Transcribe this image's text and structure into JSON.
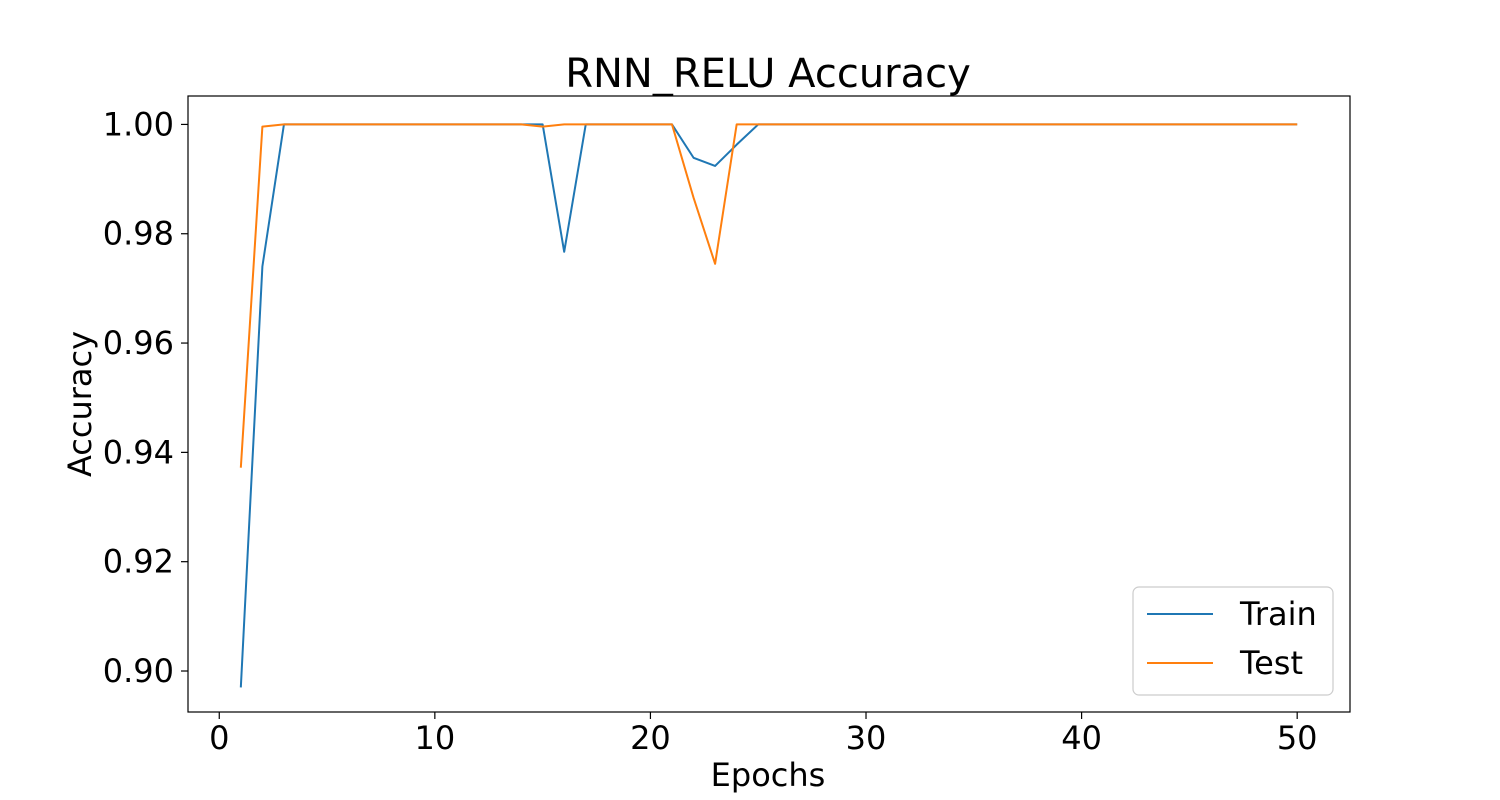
{
  "chart_data": {
    "type": "line",
    "title": "RNN_RELU Accuracy",
    "xlabel": "Epochs",
    "ylabel": "Accuracy",
    "xlim": [
      -1.45,
      52.45
    ],
    "ylim": [
      0.8925,
      1.0052
    ],
    "xticks": [
      0,
      10,
      20,
      30,
      40,
      50
    ],
    "xtick_labels": [
      "0",
      "10",
      "20",
      "30",
      "40",
      "50"
    ],
    "yticks": [
      0.9,
      0.92,
      0.94,
      0.96,
      0.98,
      1.0
    ],
    "ytick_labels": [
      "0.90",
      "0.92",
      "0.94",
      "0.96",
      "0.98",
      "1.00"
    ],
    "grid": false,
    "legend_position": "lower-right",
    "x": [
      1,
      2,
      3,
      4,
      5,
      6,
      7,
      8,
      9,
      10,
      11,
      12,
      13,
      14,
      15,
      16,
      17,
      18,
      19,
      20,
      21,
      22,
      23,
      24,
      25,
      26,
      27,
      28,
      29,
      30,
      31,
      32,
      33,
      34,
      35,
      36,
      37,
      38,
      39,
      40,
      41,
      42,
      43,
      44,
      45,
      46,
      47,
      48,
      49,
      50
    ],
    "series": [
      {
        "name": "Train",
        "color": "#1f77b4",
        "values": [
          0.897,
          0.974,
          1.0,
          1.0,
          1.0,
          1.0,
          1.0,
          1.0,
          1.0,
          1.0,
          1.0,
          1.0,
          1.0,
          1.0,
          1.0,
          0.9767,
          1.0,
          1.0,
          1.0,
          1.0,
          1.0,
          0.9939,
          0.9924,
          0.9963,
          1.0,
          1.0,
          1.0,
          1.0,
          1.0,
          1.0,
          1.0,
          1.0,
          1.0,
          1.0,
          1.0,
          1.0,
          1.0,
          1.0,
          1.0,
          1.0,
          1.0,
          1.0,
          1.0,
          1.0,
          1.0,
          1.0,
          1.0,
          1.0,
          1.0,
          1.0
        ]
      },
      {
        "name": "Test",
        "color": "#ff7f0e",
        "values": [
          0.9372,
          0.9996,
          1.0,
          1.0,
          1.0,
          1.0,
          1.0,
          1.0,
          1.0,
          1.0,
          1.0,
          1.0,
          1.0,
          1.0,
          0.9996,
          1.0,
          1.0,
          1.0,
          1.0,
          1.0,
          1.0,
          0.9866,
          0.9745,
          1.0,
          1.0,
          1.0,
          1.0,
          1.0,
          1.0,
          1.0,
          1.0,
          1.0,
          1.0,
          1.0,
          1.0,
          1.0,
          1.0,
          1.0,
          1.0,
          1.0,
          1.0,
          1.0,
          1.0,
          1.0,
          1.0,
          1.0,
          1.0,
          1.0,
          1.0,
          1.0
        ]
      }
    ]
  }
}
